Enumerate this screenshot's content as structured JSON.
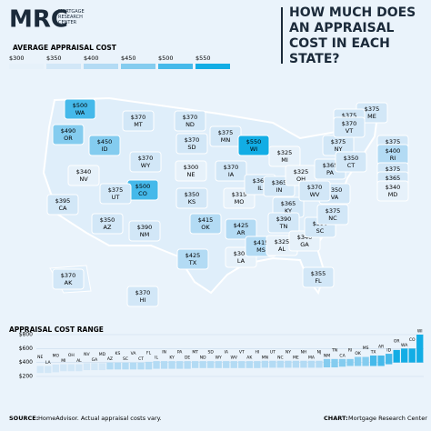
{
  "header": {
    "logo": "MRC",
    "logo_sub": "MORTGAGE RESEARCH CENTER",
    "title": "HOW MUCH DOES AN APPRAISAL COST IN EACH STATE?"
  },
  "footer": {
    "source_label": "SOURCE:",
    "source": "HomeAdvisor. Actual appraisal costs vary.",
    "chart_label": "CHART:",
    "chart": "Mortgage Research Center"
  },
  "chart_data": [
    {
      "type": "choropleth",
      "legend_title": "AVERAGE APPRAISAL COST",
      "scale_ticks": [
        {
          "value": 300,
          "label": "$300"
        },
        {
          "value": 350,
          "label": "$350"
        },
        {
          "value": 400,
          "label": "$400"
        },
        {
          "value": 450,
          "label": "$450"
        },
        {
          "value": 500,
          "label": "$500"
        },
        {
          "value": 550,
          "label": "$550"
        }
      ],
      "scale_colors": [
        "#e6f1fa",
        "#d2e7f7",
        "#b3dbf4",
        "#84ccef",
        "#45b9ea",
        "#12ade5"
      ],
      "categories": [
        "WA",
        "OR",
        "ID",
        "MT",
        "ND",
        "SD",
        "WY",
        "MN",
        "WI",
        "MI",
        "IA",
        "NE",
        "CO",
        "UT",
        "NV",
        "CA",
        "AZ",
        "NM",
        "KS",
        "OK",
        "TX",
        "MO",
        "AR",
        "LA",
        "IL",
        "IN",
        "OH",
        "KY",
        "TN",
        "MS",
        "AL",
        "GA",
        "FL",
        "SC",
        "NC",
        "VA",
        "WV",
        "PA",
        "NY",
        "ME",
        "NH",
        "VT",
        "MA",
        "RI",
        "CT",
        "NJ",
        "DE",
        "MD",
        "AK",
        "HI"
      ],
      "values": [
        500,
        490,
        450,
        370,
        370,
        370,
        370,
        375,
        550,
        325,
        370,
        300,
        500,
        375,
        340,
        395,
        350,
        390,
        350,
        415,
        425,
        315,
        425,
        300,
        365,
        365,
        325,
        365,
        390,
        415,
        325,
        340,
        355,
        350,
        375,
        350,
        370,
        365,
        375,
        375,
        375,
        370,
        375,
        400,
        350,
        375,
        365,
        340,
        370,
        370
      ],
      "value_labels": [
        "$500",
        "$490",
        "$450",
        "$370",
        "$370",
        "$370",
        "$370",
        "$375",
        "$550",
        "$325",
        "$370",
        "$300",
        "$500",
        "$375",
        "$340",
        "$395",
        "$350",
        "$390",
        "$350",
        "$415",
        "$425",
        "$315",
        "$425",
        "$300",
        "$365",
        "$365",
        "$325",
        "$365",
        "$390",
        "$415",
        "$325",
        "$340",
        "$355",
        "$350",
        "$375",
        "$350",
        "$370",
        "$365",
        "$375",
        "$375",
        "$375",
        "$370",
        "$375",
        "$400",
        "$350",
        "$375",
        "$365",
        "$340",
        "$370",
        "$370"
      ]
    },
    {
      "type": "range_bar",
      "title": "APPRAISAL COST RANGE",
      "ylim": [
        200,
        800
      ],
      "yticks": [
        {
          "value": 200,
          "label": "$200"
        },
        {
          "value": 400,
          "label": "$400"
        },
        {
          "value": 600,
          "label": "$600"
        },
        {
          "value": 800,
          "label": "$800"
        }
      ],
      "categories": [
        "NE",
        "LA",
        "MO",
        "MI",
        "OH",
        "AL",
        "NV",
        "GA",
        "MD",
        "AZ",
        "KS",
        "SC",
        "VA",
        "CT",
        "FL",
        "IL",
        "IN",
        "KY",
        "PA",
        "DE",
        "MT",
        "ND",
        "SD",
        "WY",
        "IA",
        "WV",
        "VT",
        "AK",
        "HI",
        "MN",
        "UT",
        "NC",
        "NY",
        "ME",
        "NH",
        "MA",
        "NJ",
        "NM",
        "TN",
        "CA",
        "RI",
        "OK",
        "MS",
        "TX",
        "AR",
        "ID",
        "OR",
        "WA",
        "CO",
        "WI"
      ],
      "low": [
        250,
        250,
        260,
        275,
        275,
        275,
        290,
        290,
        290,
        300,
        300,
        300,
        300,
        300,
        300,
        310,
        310,
        310,
        310,
        310,
        320,
        320,
        320,
        320,
        320,
        320,
        320,
        320,
        320,
        325,
        325,
        325,
        325,
        325,
        325,
        325,
        325,
        330,
        330,
        340,
        350,
        350,
        350,
        350,
        350,
        375,
        400,
        400,
        400,
        400
      ],
      "high": [
        350,
        350,
        370,
        375,
        375,
        375,
        390,
        390,
        390,
        400,
        400,
        400,
        400,
        400,
        410,
        420,
        420,
        420,
        420,
        420,
        420,
        420,
        420,
        420,
        420,
        420,
        420,
        420,
        420,
        425,
        425,
        425,
        425,
        425,
        425,
        425,
        425,
        450,
        450,
        450,
        450,
        480,
        480,
        500,
        500,
        525,
        580,
        600,
        600,
        800
      ]
    }
  ]
}
